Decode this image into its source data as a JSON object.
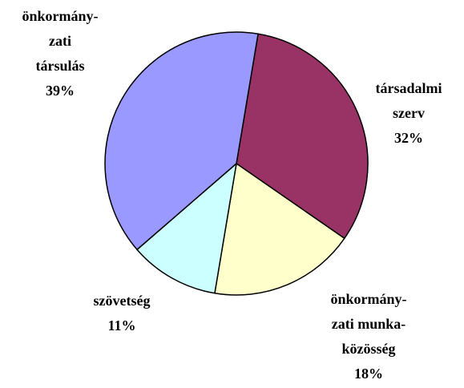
{
  "chart_data": {
    "type": "pie",
    "categories": [
      [
        "társadalmi",
        "szerv"
      ],
      [
        "önkormány-",
        "zati munka-",
        "közösség"
      ],
      [
        "szövetség"
      ],
      [
        "önkormány-",
        "zati",
        "társulás"
      ]
    ],
    "values": [
      32,
      18,
      11,
      39
    ],
    "value_labels": [
      "32%",
      "18%",
      "11%",
      "39%"
    ],
    "colors": [
      "#993366",
      "#FFFFCC",
      "#CCFFFF",
      "#9999FF"
    ]
  }
}
